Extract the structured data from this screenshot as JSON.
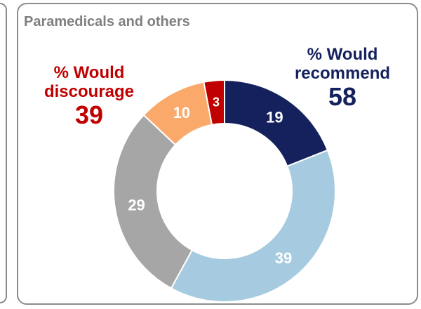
{
  "panel": {
    "title": "Paramedicals and others"
  },
  "callouts": {
    "recommend": {
      "label_line1": "% Would",
      "label_line2": "recommend",
      "value": "58",
      "color": "#14215c"
    },
    "discourage": {
      "label_line1": "% Would",
      "label_line2": "discourage",
      "value": "39",
      "color": "#c00000"
    }
  },
  "chart_data": {
    "type": "donut",
    "title": "Paramedicals and others",
    "slices": [
      {
        "label": "19",
        "value": 19,
        "color": "#14215c",
        "label_color": "#ffffff"
      },
      {
        "label": "39",
        "value": 39,
        "color": "#a6cbe0",
        "label_color": "#ffffff"
      },
      {
        "label": "29",
        "value": 29,
        "color": "#a6a6a6",
        "label_color": "#ffffff"
      },
      {
        "label": "10",
        "value": 10,
        "color": "#fba96b",
        "label_color": "#ffffff"
      },
      {
        "label": "3",
        "value": 3,
        "color": "#c00000",
        "label_color": "#ffffff"
      }
    ],
    "start_angle_deg": 0,
    "direction": "clockwise"
  }
}
